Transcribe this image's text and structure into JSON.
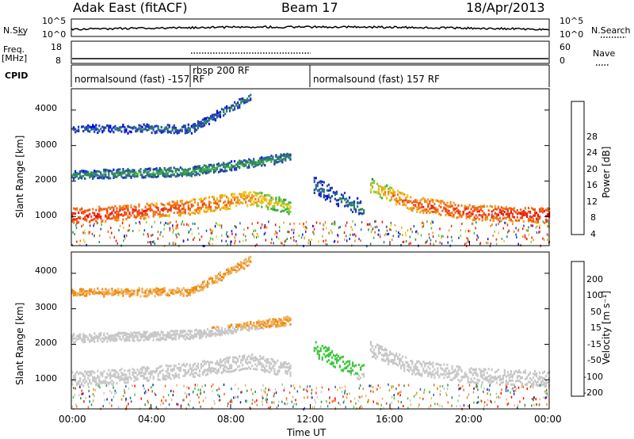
{
  "header": {
    "station": "Adak East (fitACF)",
    "beam": "Beam 17",
    "date": "18/Apr/2013"
  },
  "strip_labels": {
    "nsky": "N.Sky",
    "nsearch": "N.Search",
    "freq": "Freq.",
    "freq_unit": "[MHz]",
    "nave": "Nave",
    "cpid": "CPID",
    "noise_ticks_left": [
      "10^5",
      "10^0"
    ],
    "noise_ticks_right": [
      "10^5",
      "10^0"
    ],
    "freq_ticks": [
      "18",
      "8"
    ],
    "nave_ticks": [
      "60",
      "0"
    ]
  },
  "cpid_segments": [
    {
      "label": "normalsound (fast) -157 RF",
      "start": "00:00",
      "end": "06:00"
    },
    {
      "label": "rbsp 200 RF",
      "start": "06:00",
      "end": "12:00"
    },
    {
      "label": "normalsound (fast) 157 RF",
      "start": "12:00",
      "end": "24:00"
    }
  ],
  "colors": {
    "power": [
      "#0000ff",
      "#1e3cb4",
      "#2f6e8a",
      "#2e8b57",
      "#3cb43c",
      "#8cc83c",
      "#f0c81e",
      "#f0a01e",
      "#f07814",
      "#f05014",
      "#e62814",
      "#ff0000"
    ],
    "velocity": [
      "#1e1e96",
      "#1e64b4",
      "#2e8b57",
      "#3cc83c",
      "#9ad28c",
      "#c8c8c8",
      "#c8c8c8",
      "#f0b464",
      "#f08c14",
      "#f06414",
      "#f03c14",
      "#ff0000"
    ]
  },
  "chart_data": [
    {
      "type": "heatmap",
      "name": "power",
      "ylabel": "Slant Range [km]",
      "yticks": [
        "1000",
        "2000",
        "3000",
        "4000"
      ],
      "ylim": [
        180,
        4600
      ],
      "xlim": [
        "00:00",
        "24:00"
      ],
      "colorbar_label": "Power [dB]",
      "colorbar_ticks": [
        "28",
        "24",
        "20",
        "16",
        "12",
        "8",
        "4"
      ],
      "colorbar_range": [
        0,
        32
      ],
      "bands": [
        {
          "description": "strong F-region echoes",
          "x": [
            "00:00",
            "03:00",
            "06:00",
            "09:00",
            "11:00"
          ],
          "range_km": [
            1050,
            1150,
            1300,
            1550,
            1300
          ],
          "power_db": [
            30,
            28,
            26,
            22,
            16
          ]
        },
        {
          "description": "strong F-region echoes",
          "x": [
            "15:00",
            "17:00",
            "20:00",
            "24:00"
          ],
          "range_km": [
            1900,
            1400,
            1150,
            1050
          ],
          "power_db": [
            18,
            26,
            28,
            30
          ]
        },
        {
          "description": "mid-range echoes",
          "x": [
            "00:00",
            "06:00",
            "11:00"
          ],
          "range_km": [
            2200,
            2300,
            2700
          ],
          "power_db": [
            10,
            12,
            10
          ]
        },
        {
          "description": "far-range echoes",
          "x": [
            "00:00",
            "06:00",
            "09:00"
          ],
          "range_km": [
            3500,
            3500,
            4400
          ],
          "power_db": [
            6,
            8,
            8
          ]
        },
        {
          "description": "isolated patch",
          "x": [
            "12:10",
            "14:40"
          ],
          "range_km": [
            1900,
            1200
          ],
          "power_db": [
            8,
            8
          ]
        }
      ]
    },
    {
      "type": "heatmap",
      "name": "velocity",
      "ylabel": "Slant Range [km]",
      "yticks": [
        "1000",
        "2000",
        "3000",
        "4000"
      ],
      "ylim": [
        180,
        4600
      ],
      "xlim": [
        "00:00",
        "24:00"
      ],
      "xlabel": "Time UT",
      "xticks": [
        "00:00",
        "04:00",
        "08:00",
        "12:00",
        "16:00",
        "20:00",
        "00:00"
      ],
      "colorbar_label": "Velocity [m s⁻¹]",
      "colorbar_ticks": [
        "200",
        "100",
        "50",
        "15",
        "-15",
        "-50",
        "-100",
        "-200"
      ],
      "colorbar_range": [
        -250,
        250
      ]
    }
  ]
}
